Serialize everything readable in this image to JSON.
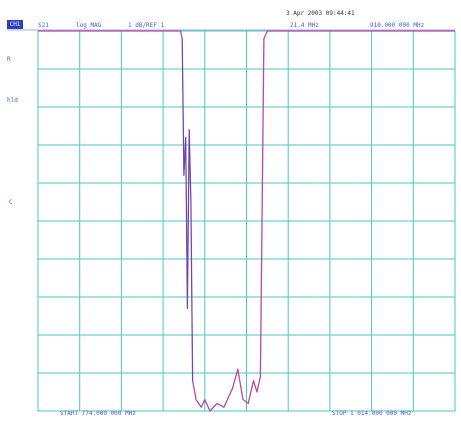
{
  "screen": {
    "timestamp": "3 Apr 2003  09:44:41",
    "header": {
      "badge": "CH1",
      "chan": "S21",
      "fmt": "log MAG",
      "scale": "1 dB/REF 1",
      "marker_readout": "21.4 MHz",
      "marker_freq": "910.000 000 MHz"
    },
    "left_labels": {
      "top": "R",
      "mid": "hld",
      "lower": "C"
    },
    "footer": {
      "start": "START 774.000 000 MHz",
      "stop": "STOP 1 014.000 000 MHz"
    },
    "colors": {
      "grid": "#4bc7c7",
      "trace": "#b24aa8",
      "trace_dark": "#2a4fae",
      "text": "#3f64c8"
    },
    "chart_data": {
      "type": "line",
      "x_unit": "MHz",
      "xlim": [
        774,
        1014
      ],
      "y_unit": "dB",
      "ylim": [
        0,
        1
      ],
      "grid": true,
      "grid_divisions": {
        "x": 10,
        "y": 10
      },
      "series": [
        {
          "points": [
            [
              774,
              1.0
            ],
            [
              856,
              1.0
            ],
            [
              857,
              0.98
            ],
            [
              858,
              0.62
            ],
            [
              859,
              0.72
            ],
            [
              860,
              0.27
            ],
            [
              861,
              0.74
            ],
            [
              862,
              0.55
            ],
            [
              863,
              0.08
            ],
            [
              865,
              0.03
            ],
            [
              868,
              0.01
            ],
            [
              870,
              0.03
            ],
            [
              873,
              0.0
            ],
            [
              877,
              0.02
            ],
            [
              881,
              0.01
            ],
            [
              886,
              0.06
            ],
            [
              889,
              0.11
            ],
            [
              892,
              0.03
            ],
            [
              895,
              0.02
            ],
            [
              898,
              0.08
            ],
            [
              900,
              0.05
            ],
            [
              902,
              0.09
            ],
            [
              904,
              0.98
            ],
            [
              906,
              1.0
            ],
            [
              1014,
              1.0
            ]
          ]
        }
      ]
    }
  }
}
